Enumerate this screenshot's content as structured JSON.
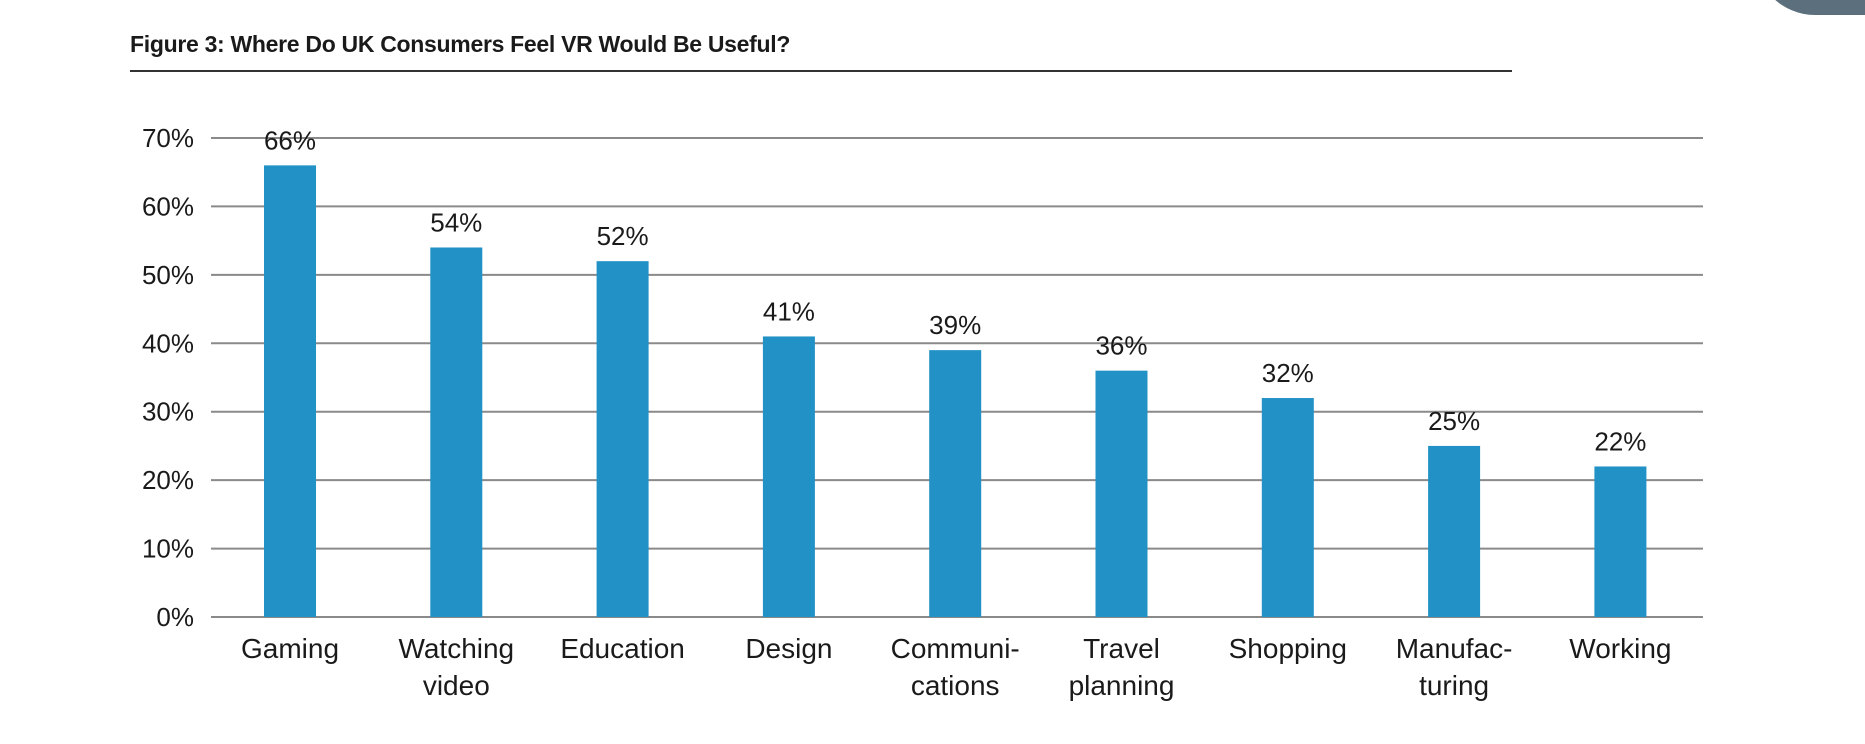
{
  "figure": {
    "title": "Figure 3: Where Do UK Consumers Feel VR Would Be Useful?"
  },
  "colors": {
    "bar": "#2291c6",
    "grid": "#8a8a8a",
    "axis": "#8a8a8a",
    "text": "#1a1a1a",
    "corner_accent": "#5b6f7c"
  },
  "chart_data": {
    "type": "bar",
    "title": "Figure 3: Where Do UK Consumers Feel VR Would Be Useful?",
    "categories": [
      [
        "Gaming"
      ],
      [
        "Watching",
        "video"
      ],
      [
        "Education"
      ],
      [
        "Design"
      ],
      [
        "Communi-",
        "cations"
      ],
      [
        "Travel",
        "planning"
      ],
      [
        "Shopping"
      ],
      [
        "Manufac-",
        "turing"
      ],
      [
        "Working"
      ]
    ],
    "values": [
      66,
      54,
      52,
      41,
      39,
      36,
      32,
      25,
      22
    ],
    "value_labels": [
      "66%",
      "54%",
      "52%",
      "41%",
      "39%",
      "36%",
      "32%",
      "25%",
      "22%"
    ],
    "y_ticks": [
      0,
      10,
      20,
      30,
      40,
      50,
      60,
      70
    ],
    "y_tick_labels": [
      "0%",
      "10%",
      "20%",
      "30%",
      "40%",
      "50%",
      "60%",
      "70%"
    ],
    "ylim": [
      0,
      70
    ],
    "xlabel": "",
    "ylabel": "",
    "grid": true,
    "legend": "none"
  }
}
